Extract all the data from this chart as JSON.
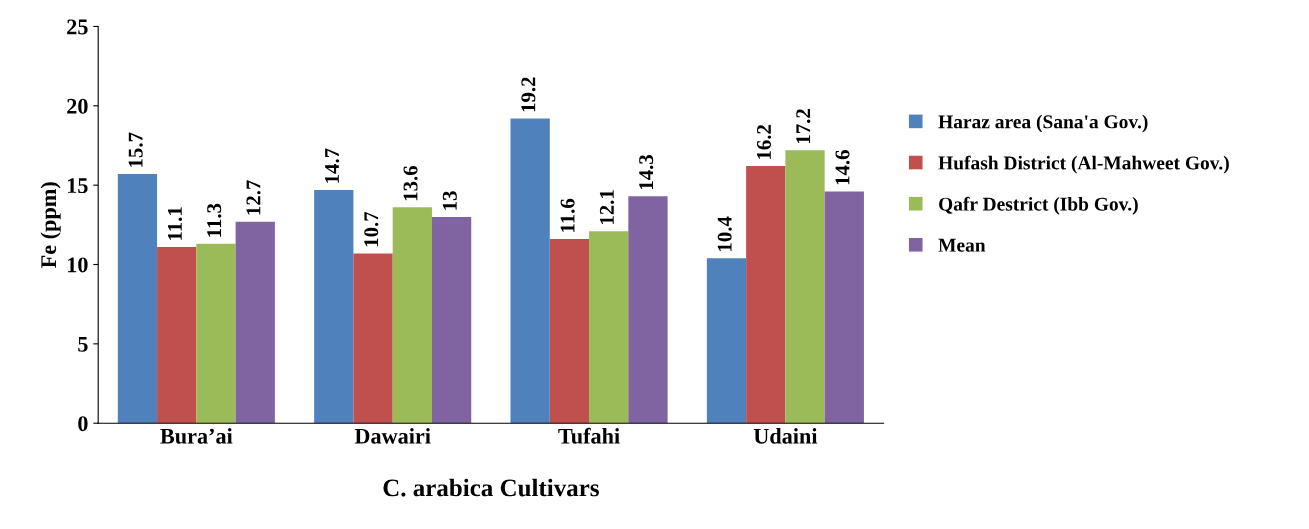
{
  "chart_data": {
    "type": "bar",
    "xlabel": "C. arabica Cultivars",
    "ylabel": "Fe (ppm)",
    "categories": [
      "Bura’ai",
      "Dawairi",
      "Tufahi",
      "Udaini"
    ],
    "series": [
      {
        "name": "Haraz area (Sana'a Gov.)",
        "color": "#4f81bd",
        "values": [
          15.7,
          14.7,
          19.2,
          10.4
        ]
      },
      {
        "name": "Hufash District (Al-Mahweet Gov.)",
        "color": "#c0504d",
        "values": [
          11.1,
          10.7,
          11.6,
          16.2
        ]
      },
      {
        "name": "Qafr Destrict (Ibb Gov.)",
        "color": "#9bbb59",
        "values": [
          11.3,
          13.6,
          12.1,
          17.2
        ]
      },
      {
        "name": "Mean",
        "color": "#8064a2",
        "values": [
          12.7,
          13,
          14.3,
          14.6
        ]
      }
    ],
    "ylim": [
      0,
      25
    ],
    "yticks": [
      0,
      5,
      10,
      15,
      20,
      25
    ],
    "grid": false,
    "legend": "right",
    "data_labels": true
  }
}
